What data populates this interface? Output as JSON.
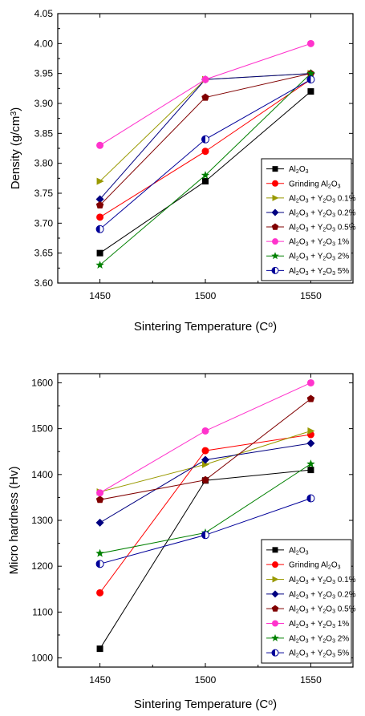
{
  "chart_data": [
    {
      "type": "line",
      "x": [
        1450,
        1500,
        1550
      ],
      "xticks": [
        "1450",
        "1500",
        "1550"
      ],
      "xlim": [
        1430,
        1570
      ],
      "xlabel": "Sintering Temperature (C°)",
      "ylabel": "Density (g/cm³)",
      "ylim": [
        3.6,
        4.05
      ],
      "yticks": [
        "3.60",
        "3.65",
        "3.70",
        "3.75",
        "3.80",
        "3.85",
        "3.90",
        "3.95",
        "4.00",
        "4.05"
      ],
      "legend_position": "bottom-right",
      "series": [
        {
          "name": "Al₂O₃",
          "marker": "square",
          "color": "#000000",
          "values": [
            3.65,
            3.77,
            3.92
          ]
        },
        {
          "name": "Grinding Al₂O₃",
          "marker": "circle",
          "color": "#ff0000",
          "values": [
            3.71,
            3.82,
            3.94
          ]
        },
        {
          "name": "Al₂O₃ + Y₂O₃ 0.1%",
          "marker": "triangle-right",
          "color": "#999900",
          "values": [
            3.77,
            3.94,
            3.95
          ]
        },
        {
          "name": "Al₂O₃ + Y₂O₃ 0.2%",
          "marker": "diamond",
          "color": "#000080",
          "values": [
            3.74,
            3.94,
            3.95
          ]
        },
        {
          "name": "Al₂O₃ + Y₂O₃ 0.5%",
          "marker": "pentagon",
          "color": "#800000",
          "values": [
            3.73,
            3.91,
            3.95
          ]
        },
        {
          "name": "Al₂O₃ + Y₂O₃ 1%",
          "marker": "circle",
          "color": "#ff33cc",
          "values": [
            3.83,
            3.94,
            4.0
          ]
        },
        {
          "name": "Al₂O₃ + Y₂O₃ 2%",
          "marker": "star",
          "color": "#008000",
          "values": [
            3.63,
            3.78,
            3.95
          ]
        },
        {
          "name": "Al₂O₃ + Y₂O₃ 5%",
          "marker": "half-circle",
          "color": "#000099",
          "values": [
            3.69,
            3.84,
            3.94
          ]
        }
      ]
    },
    {
      "type": "line",
      "x": [
        1450,
        1500,
        1550
      ],
      "xticks": [
        "1450",
        "1500",
        "1550"
      ],
      "xlim": [
        1430,
        1570
      ],
      "xlabel": "Sintering Temperature (C°)",
      "ylabel": "Micro hardness (Hv)",
      "ylim": [
        980,
        1620
      ],
      "yticks": [
        "1000",
        "1100",
        "1200",
        "1300",
        "1400",
        "1500",
        "1600"
      ],
      "legend_position": "bottom-right",
      "series": [
        {
          "name": "Al₂O₃",
          "marker": "square",
          "color": "#000000",
          "values": [
            1020,
            1387,
            1410
          ]
        },
        {
          "name": "Grinding Al₂O₃",
          "marker": "circle",
          "color": "#ff0000",
          "values": [
            1142,
            1452,
            1487
          ]
        },
        {
          "name": "Al₂O₃ + Y₂O₃ 0.1%",
          "marker": "triangle-right",
          "color": "#999900",
          "values": [
            1362,
            1422,
            1495
          ]
        },
        {
          "name": "Al₂O₃ + Y₂O₃ 0.2%",
          "marker": "diamond",
          "color": "#000080",
          "values": [
            1295,
            1432,
            1468
          ]
        },
        {
          "name": "Al₂O₃ + Y₂O₃ 0.5%",
          "marker": "pentagon",
          "color": "#800000",
          "values": [
            1345,
            1388,
            1565
          ]
        },
        {
          "name": "Al₂O₃ + Y₂O₃ 1%",
          "marker": "circle",
          "color": "#ff33cc",
          "values": [
            1360,
            1495,
            1600
          ]
        },
        {
          "name": "Al₂O₃ + Y₂O₃ 2%",
          "marker": "star",
          "color": "#008000",
          "values": [
            1228,
            1273,
            1423
          ]
        },
        {
          "name": "Al₂O₃ + Y₂O₃ 5%",
          "marker": "half-circle",
          "color": "#000099",
          "values": [
            1205,
            1268,
            1348
          ]
        }
      ]
    }
  ]
}
